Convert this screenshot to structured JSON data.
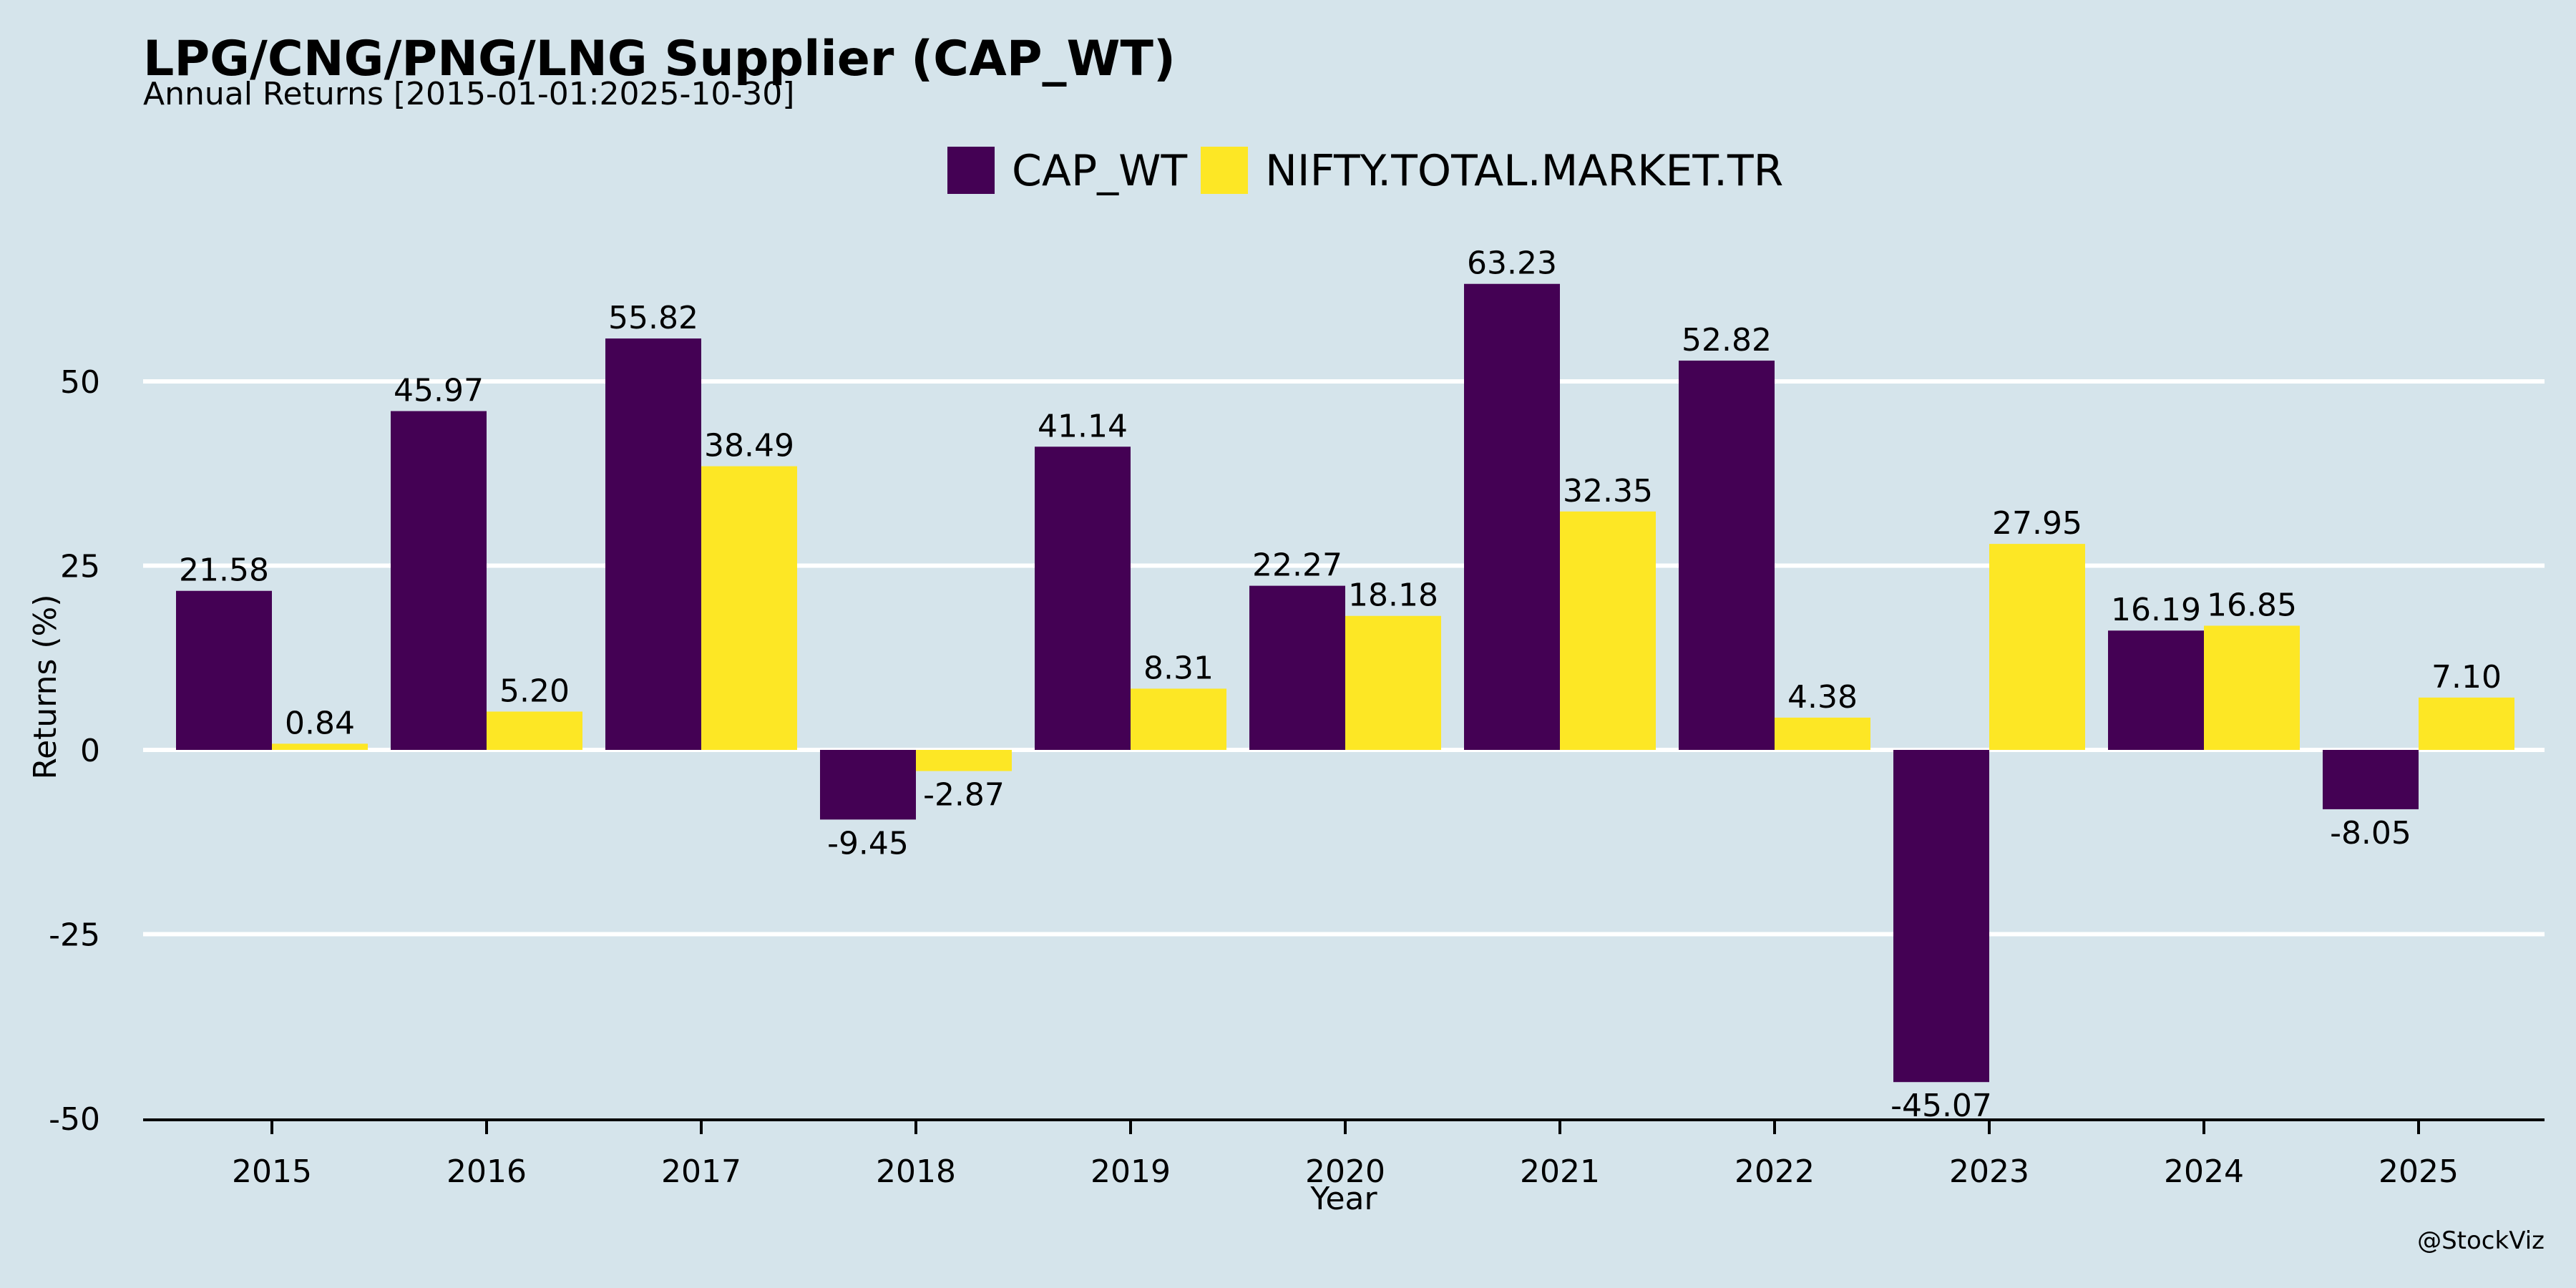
{
  "chart_data": {
    "type": "bar",
    "title": "LPG/CNG/PNG/LNG Supplier (CAP_WT)",
    "subtitle": "Annual Returns [2015-01-01:2025-10-30]",
    "xlabel": "Year",
    "ylabel": "Returns (%)",
    "categories": [
      "2015",
      "2016",
      "2017",
      "2018",
      "2019",
      "2020",
      "2021",
      "2022",
      "2023",
      "2024",
      "2025"
    ],
    "series": [
      {
        "name": "CAP_WT",
        "color": "#440154",
        "values": [
          21.58,
          45.97,
          55.82,
          -9.45,
          41.14,
          22.27,
          63.23,
          52.82,
          -45.07,
          16.19,
          -8.05
        ],
        "labels": [
          "21.58",
          "45.97",
          "55.82",
          "-9.45",
          "41.14",
          "22.27",
          "63.23",
          "52.82",
          "-45.07",
          "16.19",
          "-8.05"
        ]
      },
      {
        "name": "NIFTY.TOTAL.MARKET.TR",
        "color": "#fde725",
        "values": [
          0.84,
          5.2,
          38.49,
          -2.87,
          8.31,
          18.18,
          32.35,
          4.38,
          27.95,
          16.85,
          7.1
        ],
        "labels": [
          "0.84",
          "5.20",
          "38.49",
          "-2.87",
          "8.31",
          "18.18",
          "32.35",
          "4.38",
          "27.95",
          "16.85",
          "7.10"
        ]
      }
    ],
    "ylim": [
      -50,
      70
    ],
    "yticks": [
      -50,
      -25,
      0,
      25,
      50
    ],
    "ytick_labels": [
      "-50",
      "-25",
      "0",
      "25",
      "50"
    ],
    "grid": true,
    "legend_position": "top-center",
    "credit": "@StockViz"
  }
}
